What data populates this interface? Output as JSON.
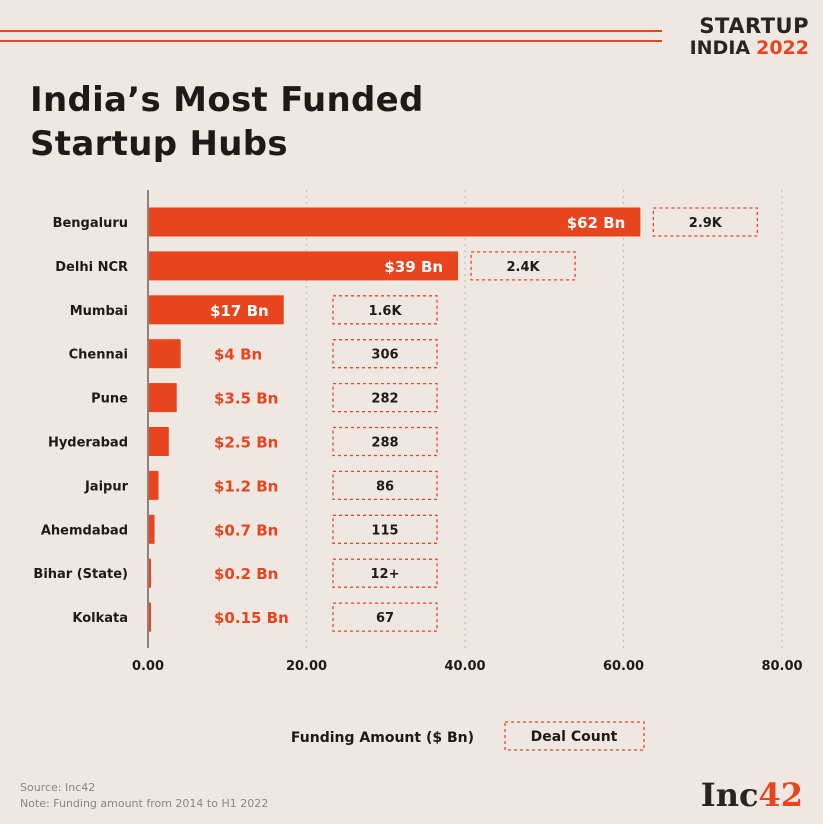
{
  "brand": {
    "line1": "STARTUP",
    "line2": "INDIA",
    "year": "2022"
  },
  "title": {
    "line1": "India’s Most Funded",
    "line2": "Startup Hubs"
  },
  "chart_data": {
    "type": "bar",
    "orientation": "horizontal",
    "categories": [
      "Bengaluru",
      "Delhi NCR",
      "Mumbai",
      "Chennai",
      "Pune",
      "Hyderabad",
      "Jaipur",
      "Ahemdabad",
      "Bihar (State)",
      "Kolkata"
    ],
    "series": [
      {
        "name": "Funding Amount ($ Bn)",
        "values": [
          62,
          39,
          17,
          4,
          3.5,
          2.5,
          1.2,
          0.7,
          0.2,
          0.15
        ],
        "labels": [
          "$62 Bn",
          "$39 Bn",
          "$17 Bn",
          "$4 Bn",
          "$3.5 Bn",
          "$2.5 Bn",
          "$1.2 Bn",
          "$0.7 Bn",
          "$0.2 Bn",
          "$0.15 Bn"
        ]
      },
      {
        "name": "Deal Count",
        "labels": [
          "2.9K",
          "2.4K",
          "1.6K",
          "306",
          "282",
          "288",
          "86",
          "115",
          "12+",
          "67"
        ]
      }
    ],
    "xlim": [
      0,
      80
    ],
    "xticks": [
      "0.00",
      "20.00",
      "40.00",
      "60.00",
      "80.00"
    ],
    "tick_values": [
      0,
      20,
      40,
      60,
      80
    ],
    "legend": {
      "funding": "Funding Amount ($ Bn)",
      "deals": "Deal Count"
    },
    "colors": {
      "bar": "#e8451f",
      "text_dark": "#1e1a17",
      "label_orange": "#e8451f",
      "box_border": "#e8451f"
    },
    "grid": true
  },
  "footer": {
    "source": "Source: Inc42",
    "note": "Note: Funding amount from 2014 to H1 2022"
  },
  "logo": {
    "text": "Inc",
    "num": "42"
  }
}
